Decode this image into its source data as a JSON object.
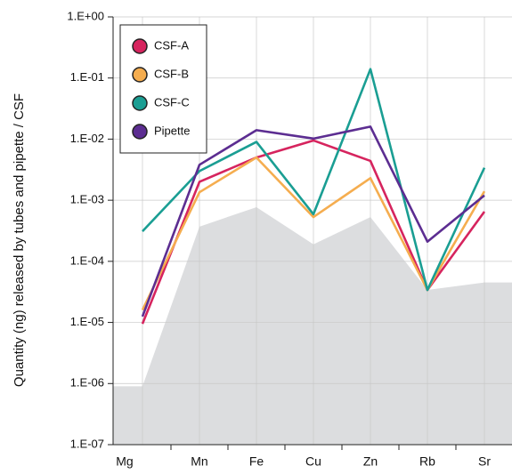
{
  "chart_data": {
    "type": "line",
    "ylabel": "Quantity (ng) released by tubes and pipette / CSF",
    "categories": [
      "Mg",
      "Mn",
      "Fe",
      "Cu",
      "Zn",
      "Rb",
      "Sr"
    ],
    "log_scale": true,
    "grid": true,
    "legend": "upper left",
    "ylim": [
      1e-07,
      1
    ],
    "yticks": [
      {
        "value": 1e-07,
        "label": "1.E-07"
      },
      {
        "value": 1e-06,
        "label": "1.E-06"
      },
      {
        "value": 1e-05,
        "label": "1.E-05"
      },
      {
        "value": 0.0001,
        "label": "1.E-04"
      },
      {
        "value": 0.001,
        "label": "1.E-03"
      },
      {
        "value": 0.01,
        "label": "1.E-02"
      },
      {
        "value": 0.1,
        "label": "1.E-01"
      },
      {
        "value": 1,
        "label": "1.E+00"
      }
    ],
    "background_area": {
      "color": "#dcdddf",
      "values": [
        9e-07,
        0.00037,
        0.00077,
        0.00019,
        0.00053,
        3.4e-05,
        4.5e-05
      ]
    },
    "series": [
      {
        "name": "CSF-A",
        "color": "#d6245e",
        "values": [
          9.5e-06,
          0.002,
          0.005,
          0.0095,
          0.0044,
          3.4e-05,
          0.00065
        ]
      },
      {
        "name": "CSF-B",
        "color": "#f5ad4f",
        "values": [
          1.6e-05,
          0.00135,
          0.005,
          0.00053,
          0.0023,
          3.4e-05,
          0.0014
        ]
      },
      {
        "name": "CSF-C",
        "color": "#1a9e93",
        "values": [
          0.00031,
          0.003,
          0.009,
          0.00059,
          0.14,
          3.4e-05,
          0.0034
        ]
      },
      {
        "name": "Pipette",
        "color": "#5c2d91",
        "values": [
          1.25e-05,
          0.0038,
          0.014,
          0.0102,
          0.016,
          0.00021,
          0.0012
        ]
      }
    ]
  }
}
